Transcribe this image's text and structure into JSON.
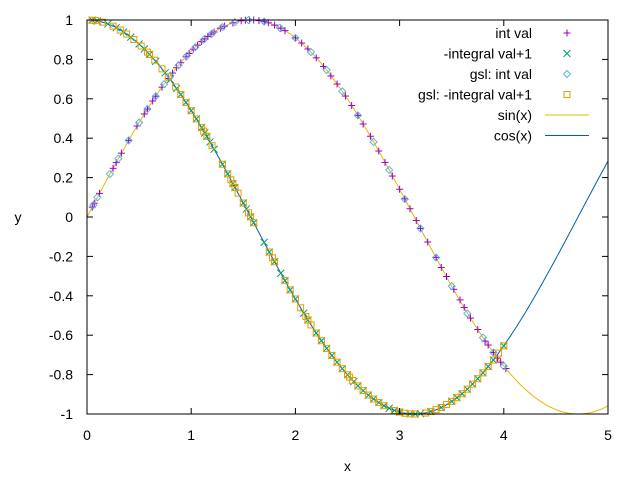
{
  "chart_data": {
    "type": "scatter",
    "xlabel": "x",
    "ylabel": "y",
    "xlim": [
      0,
      5
    ],
    "ylim": [
      -1,
      1
    ],
    "x_ticks": [
      "0",
      "1",
      "2",
      "3",
      "4",
      "5"
    ],
    "y_ticks": [
      "-1",
      "-0.8",
      "-0.6",
      "-0.4",
      "-0.2",
      "0",
      "0.2",
      "0.4",
      "0.6",
      "0.8",
      "1"
    ],
    "legend_position": "top-right",
    "grid": false,
    "series": [
      {
        "name": "int val",
        "kind": "points",
        "marker": "plus",
        "color": "#9400d3",
        "x": [
          0.05,
          0.07,
          0.12,
          0.25,
          0.28,
          0.33,
          0.4,
          0.48,
          0.55,
          0.58,
          0.63,
          0.66,
          0.72,
          0.78,
          0.82,
          0.86,
          0.9,
          0.95,
          0.98,
          1.02,
          1.06,
          1.1,
          1.13,
          1.16,
          1.19,
          1.22,
          1.28,
          1.32,
          1.4,
          1.48,
          1.52,
          1.56,
          1.6,
          1.65,
          1.7,
          1.74,
          1.8,
          1.86,
          1.9,
          2.0,
          2.06,
          2.12,
          2.2,
          2.27,
          2.34,
          2.4,
          2.48,
          2.54,
          2.6,
          2.65,
          2.72,
          2.8,
          2.86,
          2.93,
          3.0,
          3.05,
          3.1,
          3.16,
          3.2,
          3.27,
          3.35,
          3.4,
          3.45,
          3.52,
          3.58,
          3.62,
          3.68,
          3.75,
          3.82,
          3.85,
          3.9,
          3.94,
          3.97,
          4.02
        ],
        "y": [
          0.05,
          0.07,
          0.12,
          0.247,
          0.276,
          0.324,
          0.389,
          0.462,
          0.523,
          0.548,
          0.589,
          0.613,
          0.659,
          0.703,
          0.731,
          0.758,
          0.783,
          0.813,
          0.83,
          0.852,
          0.872,
          0.891,
          0.904,
          0.917,
          0.928,
          0.939,
          0.958,
          0.969,
          0.985,
          0.996,
          0.999,
          1.0,
          1.0,
          0.997,
          0.992,
          0.986,
          0.974,
          0.958,
          0.946,
          0.909,
          0.883,
          0.853,
          0.808,
          0.764,
          0.716,
          0.675,
          0.614,
          0.566,
          0.516,
          0.472,
          0.41,
          0.335,
          0.277,
          0.208,
          0.141,
          0.092,
          0.042,
          -0.018,
          -0.058,
          -0.127,
          -0.205,
          -0.256,
          -0.302,
          -0.367,
          -0.421,
          -0.459,
          -0.513,
          -0.571,
          -0.63,
          -0.65,
          -0.688,
          -0.716,
          -0.737,
          -0.769
        ]
      },
      {
        "name": "-integral val+1",
        "kind": "points",
        "marker": "cross",
        "color": "#009e73",
        "x": [
          0.05,
          0.1,
          0.2,
          0.28,
          0.35,
          0.42,
          0.5,
          0.55,
          0.6,
          0.66,
          0.75,
          0.8,
          0.86,
          0.9,
          0.95,
          1.0,
          1.05,
          1.1,
          1.13,
          1.15,
          1.18,
          1.22,
          1.3,
          1.35,
          1.4,
          1.42,
          1.5,
          1.53,
          1.57,
          1.6,
          1.7,
          1.75,
          1.8,
          1.86,
          1.9,
          1.95,
          2.0,
          2.08,
          2.12,
          2.2,
          2.25,
          2.3,
          2.35,
          2.4,
          2.45,
          2.5,
          2.56,
          2.6,
          2.65,
          2.7,
          2.75,
          2.8,
          2.85,
          2.9,
          2.95,
          3.0,
          3.1,
          3.15,
          3.2,
          3.3,
          3.4,
          3.5,
          3.55,
          3.6,
          3.65,
          3.7,
          3.75,
          3.8,
          3.85,
          3.9,
          4.0
        ],
        "y": [
          0.999,
          0.995,
          0.98,
          0.961,
          0.939,
          0.913,
          0.878,
          0.853,
          0.825,
          0.79,
          0.732,
          0.697,
          0.652,
          0.622,
          0.582,
          0.54,
          0.498,
          0.454,
          0.427,
          0.409,
          0.381,
          0.344,
          0.268,
          0.219,
          0.17,
          0.15,
          0.071,
          0.041,
          0.001,
          -0.029,
          -0.129,
          -0.178,
          -0.227,
          -0.285,
          -0.323,
          -0.37,
          -0.416,
          -0.488,
          -0.523,
          -0.589,
          -0.628,
          -0.667,
          -0.703,
          -0.737,
          -0.77,
          -0.801,
          -0.836,
          -0.857,
          -0.881,
          -0.904,
          -0.924,
          -0.942,
          -0.958,
          -0.971,
          -0.982,
          -0.99,
          -0.999,
          -1.0,
          -0.998,
          -0.987,
          -0.967,
          -0.936,
          -0.917,
          -0.897,
          -0.874,
          -0.848,
          -0.821,
          -0.791,
          -0.759,
          -0.726,
          -0.654
        ]
      },
      {
        "name": "gsl: int val",
        "kind": "points",
        "marker": "diamond",
        "color": "#56b4e9",
        "x": [
          0.06,
          0.1,
          0.22,
          0.3,
          0.4,
          0.5,
          0.58,
          0.66,
          0.74,
          0.8,
          0.88,
          0.96,
          1.04,
          1.12,
          1.2,
          1.3,
          1.42,
          1.55,
          1.7,
          1.85,
          2.0,
          2.15,
          2.3,
          2.45,
          2.6,
          2.75,
          2.9,
          3.05,
          3.2,
          3.35,
          3.5,
          3.65,
          3.8,
          3.9,
          4.0
        ],
        "y": [
          0.06,
          0.1,
          0.218,
          0.296,
          0.389,
          0.479,
          0.548,
          0.613,
          0.674,
          0.717,
          0.771,
          0.819,
          0.862,
          0.9,
          0.932,
          0.964,
          0.989,
          1.0,
          0.992,
          0.961,
          0.909,
          0.837,
          0.746,
          0.638,
          0.516,
          0.381,
          0.239,
          0.091,
          -0.058,
          -0.206,
          -0.351,
          -0.49,
          -0.612,
          -0.688,
          -0.757
        ]
      },
      {
        "name": "gsl: -integral val+1",
        "kind": "points",
        "marker": "square",
        "color": "#e69f00",
        "x": [
          0.05,
          0.08,
          0.15,
          0.25,
          0.32,
          0.38,
          0.45,
          0.52,
          0.58,
          0.6,
          0.65,
          0.72,
          0.78,
          0.85,
          0.9,
          0.95,
          1.0,
          1.05,
          1.1,
          1.12,
          1.15,
          1.2,
          1.3,
          1.35,
          1.38,
          1.4,
          1.42,
          1.45,
          1.5,
          1.55,
          1.57,
          1.6,
          1.75,
          1.78,
          1.8,
          1.9,
          1.95,
          2.0,
          2.05,
          2.1,
          2.12,
          2.15,
          2.2,
          2.25,
          2.3,
          2.35,
          2.4,
          2.45,
          2.5,
          2.52,
          2.55,
          2.6,
          2.65,
          2.7,
          2.75,
          2.8,
          2.85,
          2.95,
          3.0,
          3.05,
          3.1,
          3.15,
          3.25,
          3.3,
          3.35,
          3.4,
          3.45,
          3.5,
          3.55,
          3.6,
          3.65,
          3.7,
          3.75,
          3.8,
          3.85,
          3.9,
          3.95,
          4.0
        ],
        "y": [
          0.999,
          0.997,
          0.989,
          0.969,
          0.949,
          0.929,
          0.901,
          0.868,
          0.837,
          0.825,
          0.796,
          0.752,
          0.711,
          0.66,
          0.622,
          0.582,
          0.54,
          0.498,
          0.454,
          0.436,
          0.409,
          0.362,
          0.268,
          0.219,
          0.189,
          0.17,
          0.15,
          0.121,
          0.071,
          0.021,
          0.001,
          -0.029,
          -0.178,
          -0.207,
          -0.227,
          -0.323,
          -0.37,
          -0.416,
          -0.461,
          -0.505,
          -0.523,
          -0.548,
          -0.589,
          -0.628,
          -0.667,
          -0.703,
          -0.737,
          -0.77,
          -0.801,
          -0.813,
          -0.83,
          -0.857,
          -0.881,
          -0.904,
          -0.924,
          -0.942,
          -0.958,
          -0.982,
          -0.99,
          -0.996,
          -0.999,
          -1.0,
          -0.995,
          -0.987,
          -0.978,
          -0.967,
          -0.952,
          -0.936,
          -0.917,
          -0.897,
          -0.874,
          -0.848,
          -0.821,
          -0.791,
          -0.759,
          -0.726,
          -0.691,
          -0.654
        ]
      },
      {
        "name": "sin(x)",
        "kind": "function",
        "func": "sin",
        "color": "#e6b800",
        "x_range": [
          0,
          5
        ]
      },
      {
        "name": "cos(x)",
        "kind": "function",
        "func": "cos",
        "color": "#0060ad",
        "x_range": [
          0,
          5
        ]
      }
    ]
  }
}
